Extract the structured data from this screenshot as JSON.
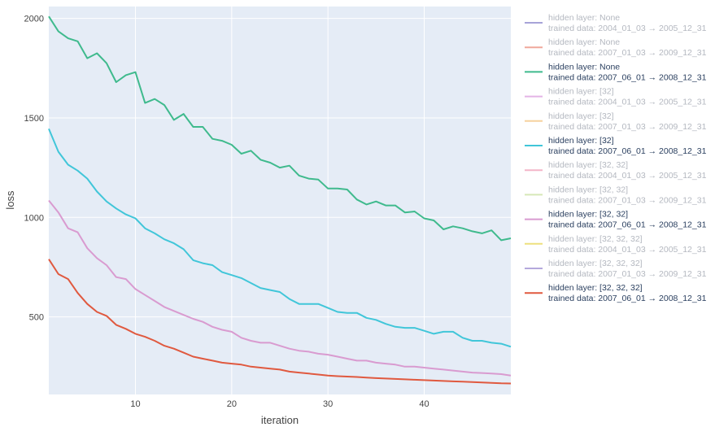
{
  "chart_data": {
    "type": "line",
    "xlabel": "iteration",
    "ylabel": "loss",
    "xlim": [
      1,
      49
    ],
    "ylim": [
      110,
      2060
    ],
    "xticks": [
      10,
      20,
      30,
      40
    ],
    "yticks": [
      500,
      1000,
      1500,
      2000
    ],
    "grid": true,
    "legend_position": "right",
    "legend_label_prefix_hidden": "hidden layer: ",
    "legend_label_prefix_trained": "trained data: ",
    "series": [
      {
        "hidden": "None",
        "trained": "2004_01_03 → 2005_12_31",
        "color": "#a7a3d8",
        "active": false,
        "values": []
      },
      {
        "hidden": "None",
        "trained": "2007_01_03 → 2009_12_31",
        "color": "#f0a89c",
        "active": false,
        "values": []
      },
      {
        "hidden": "None",
        "trained": "2007_06_01 → 2008_12_31",
        "color": "#3fba8d",
        "active": true,
        "values": [
          2010,
          1935,
          1900,
          1885,
          1800,
          1825,
          1775,
          1680,
          1715,
          1730,
          1575,
          1595,
          1565,
          1490,
          1520,
          1455,
          1455,
          1395,
          1385,
          1365,
          1320,
          1335,
          1290,
          1275,
          1250,
          1260,
          1210,
          1195,
          1190,
          1145,
          1145,
          1140,
          1090,
          1065,
          1080,
          1060,
          1060,
          1025,
          1030,
          995,
          985,
          940,
          955,
          945,
          930,
          920,
          935,
          885,
          895
        ]
      },
      {
        "hidden": "[32]",
        "trained": "2004_01_03 → 2005_12_31",
        "color": "#e4b4e6",
        "active": false,
        "values": []
      },
      {
        "hidden": "[32]",
        "trained": "2007_01_03 → 2009_12_31",
        "color": "#f6d29e",
        "active": false,
        "values": []
      },
      {
        "hidden": "[32]",
        "trained": "2007_06_01 → 2008_12_31",
        "color": "#41c6d9",
        "active": true,
        "values": [
          1445,
          1330,
          1265,
          1235,
          1195,
          1130,
          1080,
          1045,
          1015,
          995,
          945,
          920,
          890,
          870,
          840,
          785,
          770,
          760,
          725,
          710,
          695,
          670,
          645,
          635,
          625,
          590,
          565,
          565,
          565,
          545,
          525,
          520,
          520,
          495,
          485,
          465,
          450,
          445,
          445,
          430,
          415,
          425,
          425,
          395,
          380,
          380,
          370,
          365,
          350
        ]
      },
      {
        "hidden": "[32, 32]",
        "trained": "2004_01_03 → 2005_12_31",
        "color": "#f4b5c8",
        "active": false,
        "values": []
      },
      {
        "hidden": "[32, 32]",
        "trained": "2007_01_03 → 2009_12_31",
        "color": "#d6e8b8",
        "active": false,
        "values": []
      },
      {
        "hidden": "[32, 32]",
        "trained": "2007_06_01 → 2008_12_31",
        "color": "#d99bd0",
        "active": true,
        "values": [
          1085,
          1025,
          945,
          925,
          845,
          795,
          760,
          700,
          690,
          640,
          610,
          580,
          550,
          530,
          510,
          490,
          475,
          450,
          435,
          425,
          395,
          380,
          370,
          370,
          355,
          340,
          330,
          325,
          315,
          310,
          300,
          290,
          280,
          280,
          270,
          265,
          260,
          250,
          250,
          245,
          240,
          235,
          230,
          225,
          220,
          218,
          215,
          212,
          205
        ]
      },
      {
        "hidden": "[32, 32, 32]",
        "trained": "2004_01_03 → 2005_12_31",
        "color": "#ede07e",
        "active": false,
        "values": []
      },
      {
        "hidden": "[32, 32, 32]",
        "trained": "2007_01_03 → 2009_12_31",
        "color": "#b4a9dc",
        "active": false,
        "values": []
      },
      {
        "hidden": "[32, 32, 32]",
        "trained": "2007_06_01 → 2008_12_31",
        "color": "#e0593f",
        "active": true,
        "values": [
          790,
          715,
          690,
          620,
          565,
          525,
          505,
          460,
          440,
          415,
          400,
          380,
          355,
          340,
          320,
          300,
          290,
          280,
          270,
          265,
          260,
          250,
          245,
          240,
          235,
          225,
          220,
          215,
          210,
          205,
          202,
          200,
          198,
          195,
          192,
          190,
          188,
          186,
          184,
          182,
          180,
          178,
          176,
          174,
          172,
          170,
          168,
          166,
          165
        ]
      }
    ]
  }
}
